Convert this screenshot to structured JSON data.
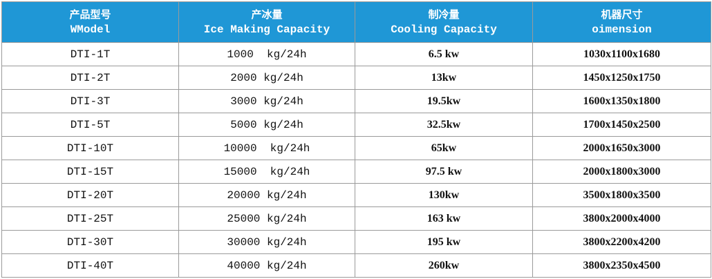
{
  "table": {
    "header": [
      [
        "产品型号",
        "WModel"
      ],
      [
        "产冰量",
        "Ice Making Capacity"
      ],
      [
        "制冷量",
        "Cooling Capacity"
      ],
      [
        "机器尺寸",
        "oimension"
      ]
    ],
    "rows": [
      [
        "DTI-1T",
        "1000  kg/24h",
        "6.5 kw",
        "1030x1100x1680"
      ],
      [
        "DTI-2T",
        "2000 kg/24h",
        "13kw",
        "1450x1250x1750"
      ],
      [
        "DTI-3T",
        "3000 kg/24h",
        "19.5kw",
        "1600x1350x1800"
      ],
      [
        "DTI-5T",
        "5000 kg/24h",
        "32.5kw",
        "1700x1450x2500"
      ],
      [
        "DTI-10T",
        "10000  kg/24h",
        "65kw",
        "2000x1650x3000"
      ],
      [
        "DTI-15T",
        "15000  kg/24h",
        "97.5 kw",
        "2000x1800x3000"
      ],
      [
        "DTI-20T",
        "20000 kg/24h",
        "130kw",
        "3500x1800x3500"
      ],
      [
        "DTI-25T",
        "25000 kg/24h",
        "163 kw",
        "3800x2000x4000"
      ],
      [
        "DTI-30T",
        "30000 kg/24h",
        "195 kw",
        "3800x2200x4200"
      ],
      [
        "DTI-40T",
        "40000 kg/24h",
        "260kw",
        "3800x2350x4500"
      ]
    ]
  }
}
